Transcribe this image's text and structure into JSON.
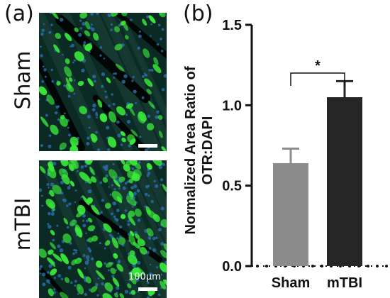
{
  "figure": {
    "panel_a_label": "(a)",
    "panel_b_label": "(b)",
    "row_labels": [
      "Sham",
      "mTBI"
    ],
    "scale_bar_text": "100μm"
  },
  "colors": {
    "sham_bar": "#8c8c8c",
    "mtbi_bar": "#262626",
    "micrograph_background": "#0b2a24",
    "fluorescence": "#39e83a",
    "nuclei": "#2b6fb0"
  },
  "chart_data": {
    "type": "bar",
    "categories": [
      "Sham",
      "mTBI"
    ],
    "values": [
      0.64,
      1.05
    ],
    "errors": [
      0.09,
      0.1
    ],
    "ylabel_lines": [
      "Normalized Area Ratio of",
      "OTR:DAPI"
    ],
    "ylim": [
      0,
      1.5
    ],
    "yticks": [
      0.0,
      0.5,
      1.0,
      1.5
    ],
    "ytick_labels": [
      "0.0",
      "0.5",
      "1.0",
      "1.5"
    ],
    "significance": {
      "pair": [
        "Sham",
        "mTBI"
      ],
      "label": "*"
    },
    "grid": false,
    "legend": "none"
  }
}
